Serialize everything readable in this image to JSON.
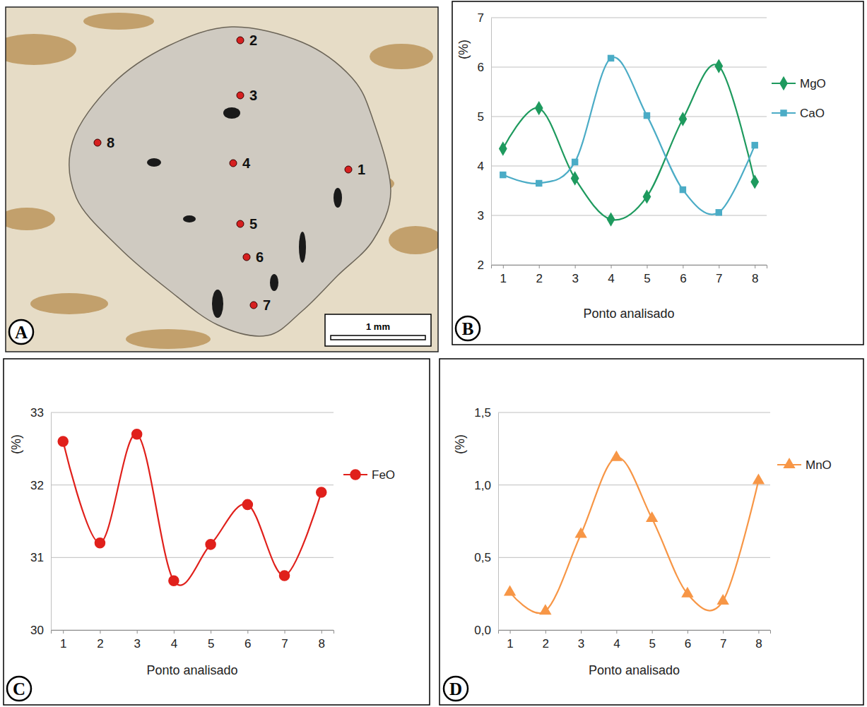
{
  "image": {
    "label": "A",
    "points": [
      "1",
      "2",
      "3",
      "4",
      "5",
      "6",
      "7",
      "8"
    ],
    "scale_bar": "1 mm"
  },
  "chart_data": [
    {
      "label": "B",
      "type": "line",
      "categories": [
        "1",
        "2",
        "3",
        "4",
        "5",
        "6",
        "7",
        "8"
      ],
      "x_label": "Ponto analisado",
      "y_label": "(%)",
      "ylim": [
        2,
        7
      ],
      "yticks": [
        2,
        3,
        4,
        5,
        6,
        7
      ],
      "grid": true,
      "legend": "right",
      "line_style": "smooth",
      "series": [
        {
          "name": "MgO",
          "color": "#1e9a5e",
          "marker": "diamond",
          "values": [
            4.35,
            5.17,
            3.75,
            2.92,
            3.38,
            4.95,
            6.02,
            3.68
          ]
        },
        {
          "name": "CaO",
          "color": "#4bacc6",
          "marker": "square",
          "values": [
            3.82,
            3.65,
            4.08,
            6.18,
            5.02,
            3.52,
            3.06,
            4.42
          ]
        }
      ]
    },
    {
      "label": "C",
      "type": "line",
      "categories": [
        "1",
        "2",
        "3",
        "4",
        "5",
        "6",
        "7",
        "8"
      ],
      "x_label": "Ponto analisado",
      "y_label": "(%)",
      "ylim": [
        30,
        33
      ],
      "yticks": [
        30,
        31,
        32,
        33
      ],
      "grid": true,
      "legend": "right",
      "line_style": "smooth",
      "series": [
        {
          "name": "FeO",
          "color": "#e0201b",
          "marker": "circle",
          "values": [
            32.6,
            31.2,
            32.7,
            30.68,
            31.18,
            31.73,
            30.75,
            31.9
          ]
        }
      ]
    },
    {
      "label": "D",
      "type": "line",
      "categories": [
        "1",
        "2",
        "3",
        "4",
        "5",
        "6",
        "7",
        "8"
      ],
      "x_label": "Ponto analisado",
      "y_label": "(%)",
      "ylim": [
        0,
        1.5
      ],
      "yticks": [
        {
          "value": 0,
          "label": "0,0"
        },
        {
          "value": 0.5,
          "label": "0,5"
        },
        {
          "value": 1,
          "label": "1,0"
        },
        {
          "value": 1.5,
          "label": "1,5"
        }
      ],
      "grid": true,
      "legend": "right",
      "line_style": "smooth",
      "series": [
        {
          "name": "MnO",
          "color": "#f79646",
          "marker": "triangle",
          "values": [
            0.26,
            0.13,
            0.66,
            1.19,
            0.77,
            0.25,
            0.2,
            1.03
          ]
        }
      ]
    }
  ]
}
